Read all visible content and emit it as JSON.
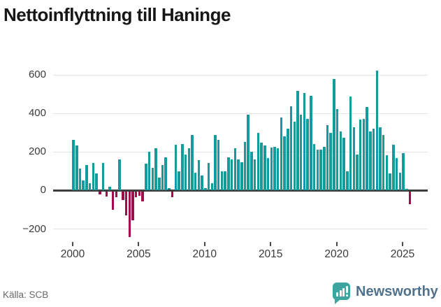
{
  "title": "Nettoinflyttning till Haninge",
  "footer": {
    "source_label": "Källa: SCB"
  },
  "branding": {
    "name": "Newsworthy",
    "icon_color": "#3EA59E",
    "text_color": "#50718C"
  },
  "colors": {
    "positive": "#149c9c",
    "negative": "#a00d4c",
    "grid": "#e3e3e3",
    "zero_line": "#3d3d3d",
    "axis_text": "#3a3a3a"
  },
  "chart_data": {
    "type": "bar",
    "title": "Nettoinflyttning till Haninge",
    "xlabel": "",
    "ylabel": "",
    "x_start": "2000 Q1",
    "x_freq": "quarterly",
    "x_end": "2025 Q3",
    "x_tick_labels": [
      "2000",
      "2005",
      "2010",
      "2015",
      "2020",
      "2025"
    ],
    "y_ticks": [
      600,
      400,
      200,
      0,
      -200
    ],
    "y_tick_labels": [
      "600",
      "400",
      "200",
      "0",
      "−200"
    ],
    "ylim": [
      -260,
      660
    ],
    "grid": true,
    "legend": false,
    "series": [
      {
        "name": "Nettoinflyttning",
        "values": [
          260,
          230,
          110,
          50,
          130,
          35,
          140,
          85,
          -15,
          140,
          -25,
          15,
          -95,
          -30,
          160,
          -45,
          -125,
          -235,
          -150,
          -30,
          -20,
          -50,
          135,
          200,
          115,
          215,
          65,
          130,
          170,
          8,
          -30,
          235,
          95,
          240,
          185,
          215,
          285,
          90,
          155,
          75,
          10,
          140,
          35,
          285,
          260,
          95,
          95,
          170,
          160,
          215,
          160,
          145,
          250,
          390,
          200,
          160,
          295,
          245,
          230,
          165,
          220,
          225,
          215,
          375,
          280,
          320,
          435,
          355,
          515,
          390,
          505,
          370,
          490,
          240,
          210,
          210,
          225,
          335,
          295,
          575,
          420,
          305,
          270,
          95,
          485,
          325,
          185,
          365,
          370,
          430,
          305,
          320,
          620,
          325,
          285,
          180,
          85,
          235,
          165,
          90,
          190,
          5,
          -65
        ]
      }
    ]
  }
}
